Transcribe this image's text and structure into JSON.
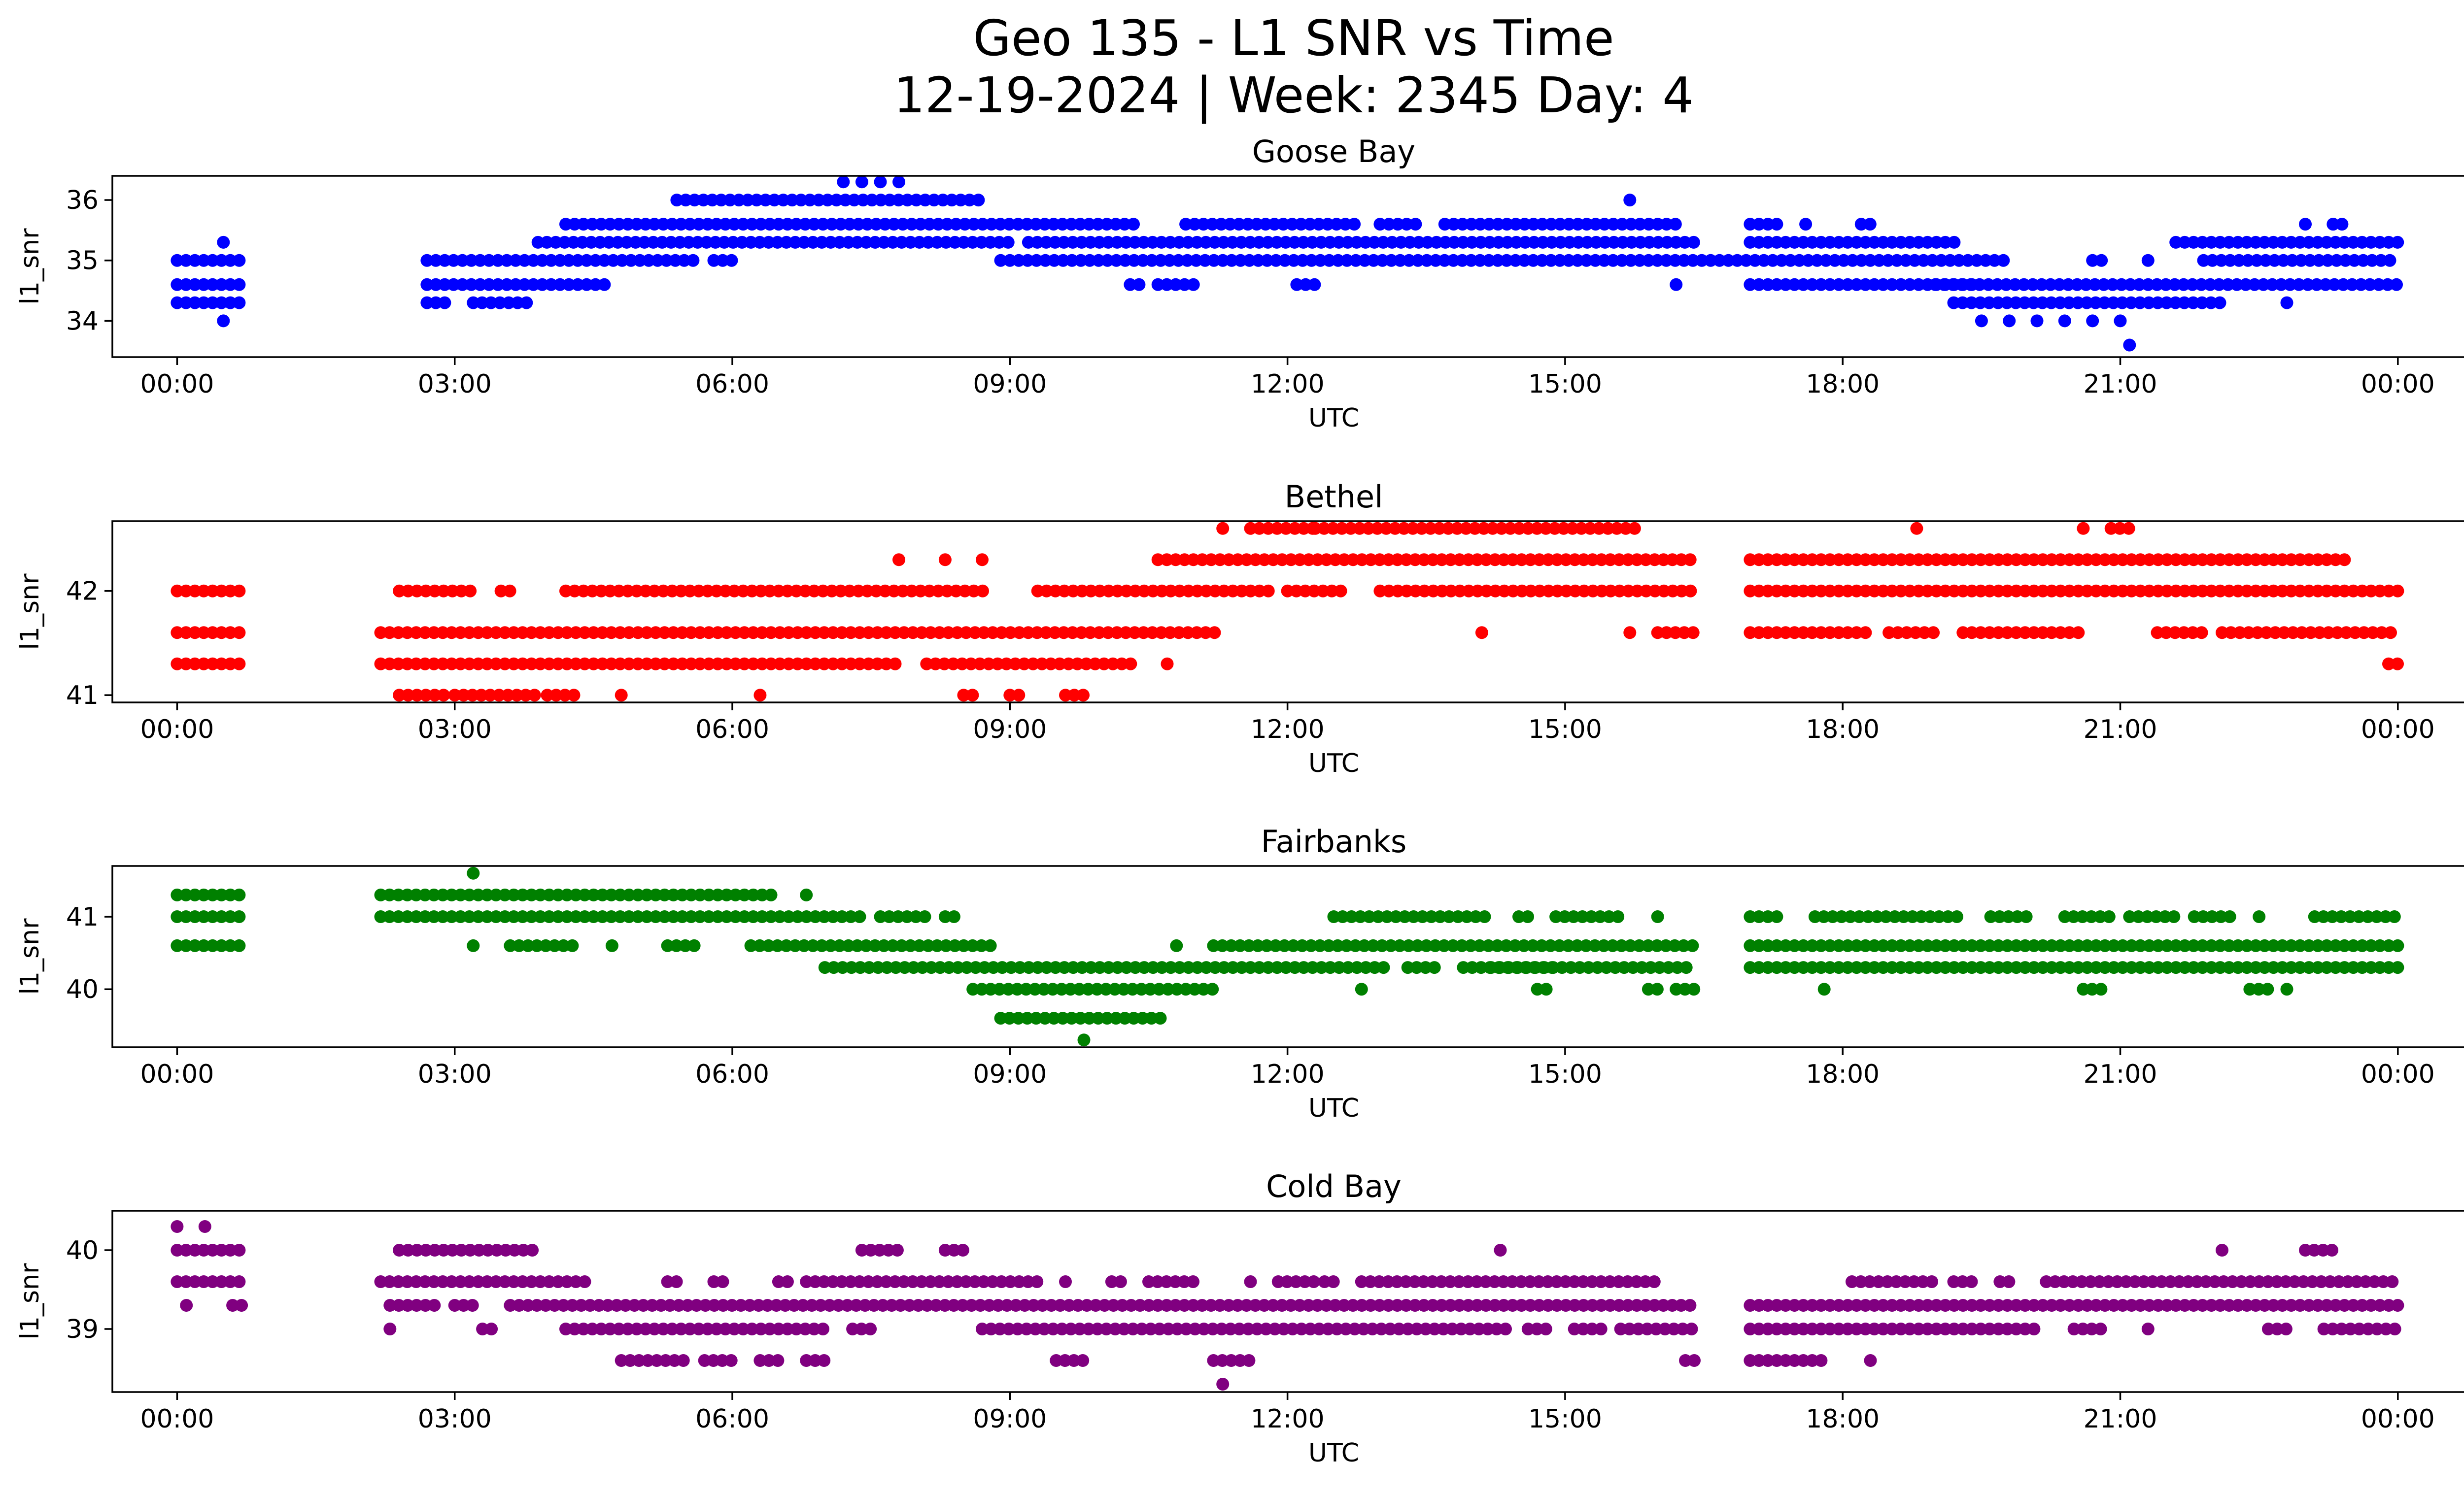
{
  "figure": {
    "title_line1": "Geo 135 - L1 SNR vs Time",
    "title_line2": "12-19-2024 | Week: 2345 Day: 4"
  },
  "chart_data": [
    {
      "type": "scatter",
      "title": "Goose Bay",
      "xlabel": "UTC",
      "ylabel": "l1_snr",
      "color": "#0000ff",
      "xlim": [
        -0.7,
        25.7
      ],
      "ylim": [
        33.4,
        36.4
      ],
      "xticks": [
        0,
        3,
        6,
        9,
        12,
        15,
        18,
        21,
        24
      ],
      "xtick_labels": [
        "00:00",
        "03:00",
        "06:00",
        "09:00",
        "12:00",
        "15:00",
        "18:00",
        "21:00",
        "00:00"
      ],
      "yticks": [
        34,
        35,
        36
      ],
      "bands": [
        {
          "y": 34.3,
          "segments": [
            [
              0.0,
              0.75
            ],
            [
              2.7,
              2.95
            ],
            [
              3.2,
              3.85
            ],
            [
              19.2,
              22.1
            ]
          ]
        },
        {
          "y": 34.6,
          "segments": [
            [
              0.0,
              0.75
            ],
            [
              2.7,
              4.7
            ],
            [
              10.3,
              10.4
            ],
            [
              10.6,
              11.0
            ],
            [
              12.1,
              12.3
            ],
            [
              16.2,
              16.2
            ],
            [
              17.0,
              19.4
            ],
            [
              19.0,
              24.0
            ]
          ]
        },
        {
          "y": 35.0,
          "segments": [
            [
              0.0,
              0.75
            ],
            [
              2.7,
              5.6
            ],
            [
              5.8,
              6.0
            ],
            [
              8.9,
              8.95
            ],
            [
              9.0,
              19.8
            ],
            [
              20.7,
              20.8
            ],
            [
              21.9,
              24.0
            ]
          ]
        },
        {
          "y": 35.3,
          "segments": [
            [
              3.9,
              9.0
            ],
            [
              9.2,
              16.4
            ],
            [
              17.0,
              19.3
            ],
            [
              21.6,
              24.0
            ]
          ]
        },
        {
          "y": 35.6,
          "segments": [
            [
              4.2,
              10.4
            ],
            [
              10.9,
              12.8
            ],
            [
              13.0,
              13.4
            ],
            [
              13.7,
              16.2
            ],
            [
              17.0,
              17.3
            ],
            [
              18.2,
              18.3
            ],
            [
              23.3,
              23.4
            ]
          ]
        },
        {
          "y": 36.0,
          "segments": [
            [
              5.4,
              8.75
            ]
          ]
        }
      ],
      "extra_points": [
        {
          "x": 0.5,
          "y": 34.0
        },
        {
          "x": 0.5,
          "y": 35.3
        },
        {
          "x": 7.2,
          "y": 36.3
        },
        {
          "x": 7.4,
          "y": 36.3
        },
        {
          "x": 7.6,
          "y": 36.3
        },
        {
          "x": 7.8,
          "y": 36.3
        },
        {
          "x": 15.7,
          "y": 36.0
        },
        {
          "x": 17.6,
          "y": 35.6
        },
        {
          "x": 19.5,
          "y": 34.0
        },
        {
          "x": 19.8,
          "y": 34.0
        },
        {
          "x": 20.1,
          "y": 34.0
        },
        {
          "x": 20.4,
          "y": 34.0
        },
        {
          "x": 20.7,
          "y": 34.0
        },
        {
          "x": 21.0,
          "y": 34.0
        },
        {
          "x": 21.1,
          "y": 33.6
        },
        {
          "x": 21.3,
          "y": 35.0
        },
        {
          "x": 22.8,
          "y": 34.3
        },
        {
          "x": 23.0,
          "y": 35.6
        },
        {
          "x": 23.3,
          "y": 35.6
        }
      ]
    },
    {
      "type": "scatter",
      "title": "Bethel",
      "xlabel": "UTC",
      "ylabel": "l1_snr",
      "color": "#ff0000",
      "xlim": [
        -0.7,
        25.7
      ],
      "ylim": [
        40.93,
        42.67
      ],
      "xticks": [
        0,
        3,
        6,
        9,
        12,
        15,
        18,
        21,
        24
      ],
      "xtick_labels": [
        "00:00",
        "03:00",
        "06:00",
        "09:00",
        "12:00",
        "15:00",
        "18:00",
        "21:00",
        "00:00"
      ],
      "yticks": [
        41,
        42
      ],
      "bands": [
        {
          "y": 41.0,
          "segments": [
            [
              2.4,
              2.9
            ],
            [
              3.0,
              3.9
            ],
            [
              4.0,
              4.3
            ],
            [
              4.8,
              4.8
            ],
            [
              6.3,
              6.3
            ],
            [
              8.5,
              8.6
            ],
            [
              9.0,
              9.1
            ],
            [
              9.6,
              9.8
            ]
          ]
        },
        {
          "y": 41.3,
          "segments": [
            [
              0.0,
              0.75
            ],
            [
              2.2,
              7.8
            ],
            [
              8.1,
              10.4
            ],
            [
              10.7,
              10.7
            ],
            [
              23.9,
              24.0
            ]
          ]
        },
        {
          "y": 41.6,
          "segments": [
            [
              0.0,
              0.75
            ],
            [
              2.2,
              11.3
            ],
            [
              14.1,
              14.1
            ],
            [
              15.7,
              15.7
            ],
            [
              16.0,
              16.4
            ],
            [
              17.0,
              18.3
            ],
            [
              18.5,
              19.0
            ],
            [
              19.3,
              20.6
            ],
            [
              21.4,
              21.9
            ],
            [
              22.1,
              24.0
            ]
          ]
        },
        {
          "y": 42.0,
          "segments": [
            [
              0.0,
              0.75
            ],
            [
              2.4,
              3.2
            ],
            [
              3.5,
              3.6
            ],
            [
              4.2,
              8.8
            ],
            [
              9.3,
              11.8
            ],
            [
              12.0,
              12.6
            ],
            [
              13.0,
              16.4
            ],
            [
              17.0,
              24.0
            ]
          ]
        },
        {
          "y": 42.3,
          "segments": [
            [
              10.6,
              16.4
            ],
            [
              17.0,
              23.5
            ]
          ]
        },
        {
          "y": 42.6,
          "segments": [
            [
              11.6,
              12.3
            ],
            [
              12.3,
              15.8
            ],
            [
              18.8,
              18.8
            ],
            [
              20.6,
              20.6
            ],
            [
              20.9,
              21.1
            ]
          ]
        }
      ],
      "extra_points": [
        {
          "x": 7.8,
          "y": 42.3
        },
        {
          "x": 8.3,
          "y": 42.3
        },
        {
          "x": 8.7,
          "y": 42.3
        },
        {
          "x": 11.3,
          "y": 42.6
        }
      ]
    },
    {
      "type": "scatter",
      "title": "Fairbanks",
      "xlabel": "UTC",
      "ylabel": "l1_snr",
      "color": "#008000",
      "xlim": [
        -0.7,
        25.7
      ],
      "ylim": [
        39.2,
        41.7
      ],
      "xticks": [
        0,
        3,
        6,
        9,
        12,
        15,
        18,
        21,
        24
      ],
      "xtick_labels": [
        "00:00",
        "03:00",
        "06:00",
        "09:00",
        "12:00",
        "15:00",
        "18:00",
        "21:00",
        "00:00"
      ],
      "yticks": [
        40,
        41
      ],
      "bands": [
        {
          "y": 39.6,
          "segments": [
            [
              8.9,
              10.7
            ]
          ]
        },
        {
          "y": 40.0,
          "segments": [
            [
              8.6,
              11.2
            ],
            [
              12.8,
              12.8
            ],
            [
              14.7,
              14.8
            ],
            [
              15.9,
              16.0
            ],
            [
              16.2,
              16.4
            ],
            [
              17.8,
              17.8
            ],
            [
              20.6,
              20.8
            ],
            [
              22.4,
              22.6
            ],
            [
              22.8,
              22.8
            ]
          ]
        },
        {
          "y": 40.3,
          "segments": [
            [
              7.0,
              11.6
            ],
            [
              11.6,
              13.1
            ],
            [
              13.3,
              13.6
            ],
            [
              13.9,
              14.9
            ],
            [
              14.2,
              16.4
            ],
            [
              17.0,
              24.0
            ]
          ]
        },
        {
          "y": 40.6,
          "segments": [
            [
              0.0,
              0.75
            ],
            [
              3.2,
              3.2
            ],
            [
              3.6,
              4.3
            ],
            [
              4.7,
              4.7
            ],
            [
              5.3,
              5.6
            ],
            [
              6.2,
              8.8
            ],
            [
              10.8,
              10.8
            ],
            [
              11.2,
              16.4
            ],
            [
              17.0,
              24.0
            ]
          ]
        },
        {
          "y": 41.0,
          "segments": [
            [
              0.0,
              0.75
            ],
            [
              2.2,
              7.4
            ],
            [
              7.6,
              8.1
            ],
            [
              8.3,
              8.4
            ],
            [
              12.5,
              14.2
            ],
            [
              14.5,
              14.6
            ],
            [
              14.9,
              15.6
            ],
            [
              16.0,
              16.0
            ],
            [
              17.0,
              17.3
            ],
            [
              17.7,
              19.3
            ],
            [
              19.6,
              20.0
            ],
            [
              20.4,
              20.9
            ],
            [
              21.1,
              21.6
            ],
            [
              21.8,
              22.2
            ],
            [
              22.5,
              22.5
            ],
            [
              23.1,
              24.0
            ]
          ]
        },
        {
          "y": 41.3,
          "segments": [
            [
              0.0,
              0.75
            ],
            [
              2.2,
              6.5
            ],
            [
              6.8,
              6.8
            ]
          ]
        }
      ],
      "extra_points": [
        {
          "x": 3.2,
          "y": 41.6
        },
        {
          "x": 9.8,
          "y": 39.3
        }
      ]
    },
    {
      "type": "scatter",
      "title": "Cold Bay",
      "xlabel": "UTC",
      "ylabel": "l1_snr",
      "color": "#800080",
      "xlim": [
        -0.7,
        25.7
      ],
      "ylim": [
        38.2,
        40.5
      ],
      "xticks": [
        0,
        3,
        6,
        9,
        12,
        15,
        18,
        21,
        24
      ],
      "xtick_labels": [
        "00:00",
        "03:00",
        "06:00",
        "09:00",
        "12:00",
        "15:00",
        "18:00",
        "21:00",
        "00:00"
      ],
      "yticks": [
        39,
        40
      ],
      "bands": [
        {
          "y": 38.6,
          "segments": [
            [
              4.8,
              5.5
            ],
            [
              5.7,
              6.0
            ],
            [
              6.3,
              6.5
            ],
            [
              6.8,
              7.0
            ],
            [
              9.5,
              9.8
            ],
            [
              11.2,
              11.6
            ],
            [
              16.3,
              16.4
            ],
            [
              17.0,
              17.8
            ],
            [
              18.3,
              18.3
            ]
          ]
        },
        {
          "y": 39.0,
          "segments": [
            [
              2.3,
              2.3
            ],
            [
              3.3,
              3.4
            ],
            [
              4.2,
              7.0
            ],
            [
              7.3,
              7.5
            ],
            [
              8.7,
              14.4
            ],
            [
              14.6,
              14.8
            ],
            [
              15.1,
              15.4
            ],
            [
              15.6,
              16.4
            ],
            [
              17.0,
              20.1
            ],
            [
              20.5,
              20.8
            ],
            [
              21.3,
              21.3
            ],
            [
              22.6,
              22.8
            ],
            [
              23.2,
              24.0
            ]
          ]
        },
        {
          "y": 39.3,
          "segments": [
            [
              0.1,
              0.1
            ],
            [
              0.6,
              0.7
            ],
            [
              2.3,
              2.8
            ],
            [
              3.0,
              3.2
            ],
            [
              3.6,
              16.4
            ],
            [
              17.0,
              24.0
            ]
          ]
        },
        {
          "y": 39.6,
          "segments": [
            [
              0.0,
              0.75
            ],
            [
              2.2,
              4.5
            ],
            [
              5.3,
              5.4
            ],
            [
              5.8,
              5.9
            ],
            [
              6.5,
              6.6
            ],
            [
              6.8,
              9.3
            ],
            [
              9.6,
              9.6
            ],
            [
              10.1,
              10.2
            ],
            [
              10.5,
              11.0
            ],
            [
              11.6,
              11.6
            ],
            [
              11.9,
              12.3
            ],
            [
              12.4,
              12.5
            ],
            [
              12.8,
              16.0
            ],
            [
              18.1,
              19.0
            ],
            [
              19.2,
              19.4
            ],
            [
              19.7,
              19.8
            ],
            [
              20.2,
              24.0
            ]
          ]
        },
        {
          "y": 40.0,
          "segments": [
            [
              0.0,
              0.75
            ],
            [
              2.4,
              3.9
            ],
            [
              7.4,
              7.8
            ],
            [
              8.3,
              8.5
            ],
            [
              14.3,
              14.3
            ],
            [
              22.1,
              22.1
            ],
            [
              23.0,
              23.3
            ]
          ]
        }
      ],
      "extra_points": [
        {
          "x": 0.0,
          "y": 40.3
        },
        {
          "x": 0.3,
          "y": 40.3
        },
        {
          "x": 11.3,
          "y": 38.3
        }
      ]
    }
  ]
}
